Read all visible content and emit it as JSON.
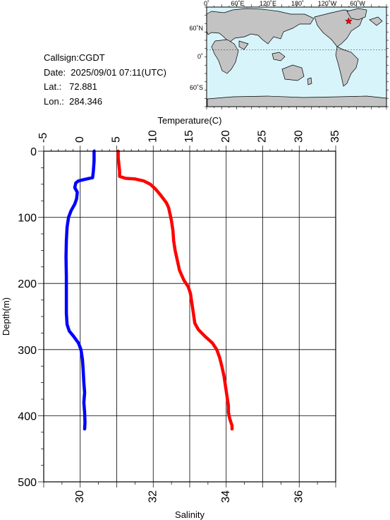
{
  "station": {
    "callsign": "Callsign:CGDT",
    "date": "Date:  2025/09/01 07:11(UTC)",
    "lat": "Lat.:   72.881",
    "lon": "Lon.:  284.346"
  },
  "map": {
    "top_labels": [
      "0˚",
      "60˚E",
      "120˚E",
      "180˚",
      "120˚W",
      "60˚W"
    ],
    "left_labels": [
      "60˚N",
      "0˚",
      "60˚S"
    ],
    "colors": {
      "ocean": "#d7f4fb",
      "land": "#c3c3c3",
      "marker": "#ff0000"
    }
  },
  "chart_data": {
    "type": "line",
    "y": {
      "label": "Depth(m)",
      "range": [
        0,
        500
      ],
      "ticks": [
        0,
        100,
        200,
        300,
        400,
        500
      ],
      "inverted": true
    },
    "x_top": {
      "label": "Temperature(C)",
      "range": [
        -5,
        35
      ],
      "ticks": [
        -5,
        0,
        5,
        10,
        15,
        20,
        25,
        30,
        35
      ]
    },
    "x_bottom": {
      "label": "Salinity",
      "range": [
        29,
        37
      ],
      "ticks": [
        30,
        32,
        34,
        36
      ]
    },
    "grid": true,
    "series": [
      {
        "axis": "top",
        "color": "#ff0000",
        "points": [
          [
            5.2,
            0
          ],
          [
            5.2,
            10
          ],
          [
            5.3,
            20
          ],
          [
            5.4,
            30
          ],
          [
            5.4,
            38
          ],
          [
            6.2,
            41
          ],
          [
            7.5,
            42
          ],
          [
            8.7,
            45
          ],
          [
            9.6,
            50
          ],
          [
            10.3,
            57
          ],
          [
            10.9,
            65
          ],
          [
            11.4,
            72
          ],
          [
            11.8,
            78
          ],
          [
            12.1,
            85
          ],
          [
            12.3,
            95
          ],
          [
            12.5,
            105
          ],
          [
            12.7,
            120
          ],
          [
            12.8,
            135
          ],
          [
            13.0,
            150
          ],
          [
            13.3,
            165
          ],
          [
            13.6,
            180
          ],
          [
            14.2,
            195
          ],
          [
            14.8,
            205
          ],
          [
            15.1,
            215
          ],
          [
            15.3,
            230
          ],
          [
            15.5,
            245
          ],
          [
            15.7,
            260
          ],
          [
            16.2,
            270
          ],
          [
            17.1,
            280
          ],
          [
            18.1,
            290
          ],
          [
            18.7,
            300
          ],
          [
            19.1,
            312
          ],
          [
            19.4,
            325
          ],
          [
            19.7,
            340
          ],
          [
            19.9,
            355
          ],
          [
            20.1,
            370
          ],
          [
            20.3,
            385
          ],
          [
            20.3,
            395
          ],
          [
            20.5,
            405
          ],
          [
            20.8,
            415
          ],
          [
            20.8,
            420
          ]
        ]
      },
      {
        "axis": "bottom",
        "color": "#0000ff",
        "points": [
          [
            30.38,
            0
          ],
          [
            30.38,
            15
          ],
          [
            30.36,
            30
          ],
          [
            30.34,
            40
          ],
          [
            30.1,
            43
          ],
          [
            29.95,
            45
          ],
          [
            29.88,
            48
          ],
          [
            29.85,
            55
          ],
          [
            29.92,
            62
          ],
          [
            29.9,
            72
          ],
          [
            29.85,
            80
          ],
          [
            29.75,
            90
          ],
          [
            29.68,
            100
          ],
          [
            29.64,
            115
          ],
          [
            29.62,
            135
          ],
          [
            29.61,
            160
          ],
          [
            29.62,
            190
          ],
          [
            29.62,
            220
          ],
          [
            29.62,
            245
          ],
          [
            29.64,
            262
          ],
          [
            29.7,
            272
          ],
          [
            29.82,
            280
          ],
          [
            29.95,
            290
          ],
          [
            30.02,
            300
          ],
          [
            30.06,
            315
          ],
          [
            30.08,
            330
          ],
          [
            30.1,
            350
          ],
          [
            30.12,
            365
          ],
          [
            30.1,
            380
          ],
          [
            30.12,
            395
          ],
          [
            30.13,
            410
          ],
          [
            30.12,
            420
          ]
        ]
      }
    ]
  }
}
